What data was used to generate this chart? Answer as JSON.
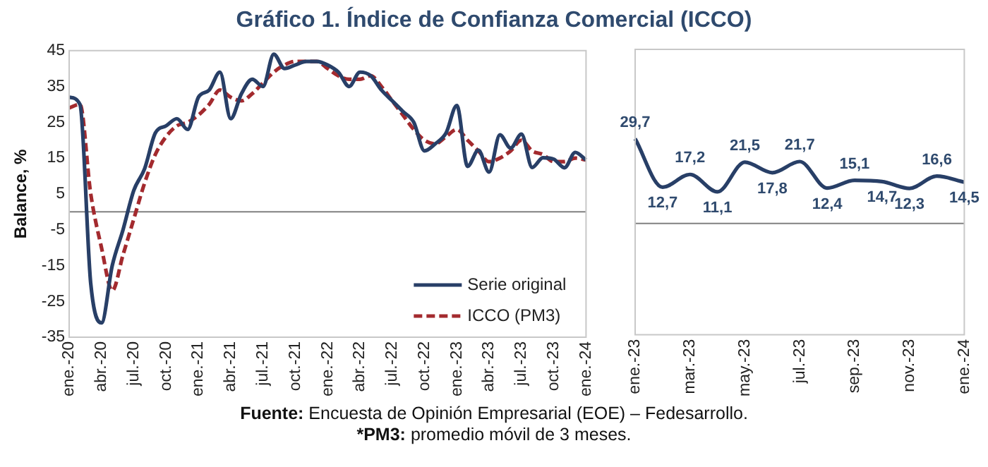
{
  "chart_data": [
    {
      "type": "line",
      "title": "Gráfico 1. Índice de Confianza Comercial (ICCO)",
      "ylabel": "Balance, %",
      "categories": [
        "ene.-20",
        null,
        null,
        "abr.-20",
        null,
        null,
        "jul.-20",
        null,
        null,
        "oct.-20",
        null,
        null,
        "ene.-21",
        null,
        null,
        "abr.-21",
        null,
        null,
        "jul.-21",
        null,
        null,
        "oct.-21",
        null,
        null,
        "ene.-22",
        null,
        null,
        "abr.-22",
        null,
        null,
        "jul.-22",
        null,
        null,
        "oct.-22",
        null,
        null,
        "ene.-23",
        null,
        null,
        "abr.-23",
        null,
        null,
        "jul.-23",
        null,
        null,
        "oct.-23",
        null,
        null,
        "ene.-24"
      ],
      "series": [
        {
          "name": "Serie original",
          "color": "#283f67",
          "line_style": "solid",
          "values": [
            32,
            30,
            -20,
            -31,
            -15,
            -5,
            6,
            12,
            22,
            24,
            26,
            23,
            32,
            34,
            39,
            26,
            33,
            37,
            35,
            44,
            40,
            41,
            42,
            42,
            41,
            39,
            35,
            39,
            38,
            34,
            31,
            28,
            25,
            17,
            19,
            22,
            29.7,
            12.7,
            17.2,
            11.1,
            21.5,
            17.8,
            21.7,
            12.4,
            15.1,
            14.7,
            12.3,
            16.6,
            14.5
          ]
        },
        {
          "name": "ICCO (PM3)",
          "color": "#a32a2e",
          "line_style": "dashed",
          "values": [
            29,
            30,
            5,
            -10,
            -22,
            -12,
            -2,
            8,
            16,
            21,
            24,
            25,
            27,
            30,
            34,
            32,
            31,
            33,
            36,
            39,
            41,
            42,
            42,
            42,
            40,
            38,
            37,
            37,
            38,
            35,
            31,
            27,
            23,
            20,
            19,
            21,
            23,
            20,
            17,
            14,
            15,
            17,
            20,
            17,
            16,
            14,
            14,
            15,
            14.5
          ]
        }
      ],
      "ylim": [
        -35,
        45
      ],
      "yticks": [
        -35,
        -25,
        -15,
        -5,
        5,
        15,
        25,
        35,
        45
      ],
      "grid": false,
      "legend": "bottom right",
      "ref_lines": [
        {
          "axis": "y",
          "value": 0,
          "color": "#808080"
        }
      ],
      "annotations": [
        "Fuente: Encuesta de Opinión Empresarial (EOE) – Fedesarrollo.",
        "*PM3: promedio móvil de 3 meses."
      ]
    },
    {
      "type": "line",
      "categories": [
        "ene.-23",
        null,
        "mar.-23",
        null,
        "may.-23",
        null,
        "jul.-23",
        null,
        "sep.-23",
        null,
        "nov.-23",
        null,
        "ene.-24"
      ],
      "series": [
        {
          "color": "#283f67",
          "values": [
            29.7,
            12.7,
            17.2,
            11.1,
            21.5,
            17.8,
            21.7,
            12.4,
            15.1,
            14.7,
            12.3,
            16.6,
            14.5
          ],
          "value_labels": [
            "29,7",
            "12,7",
            "17,2",
            "11,1",
            "21,5",
            "17,8",
            "21,7",
            "12,4",
            "15,1",
            "14,7",
            "12,3",
            "16,6",
            "14,5"
          ]
        }
      ],
      "ylim": [
        -39,
        61
      ],
      "tick_labels": "x",
      "grid": false,
      "legend": false,
      "ref_lines": [
        {
          "axis": "y",
          "value": 0,
          "color": "#808080"
        }
      ]
    }
  ]
}
